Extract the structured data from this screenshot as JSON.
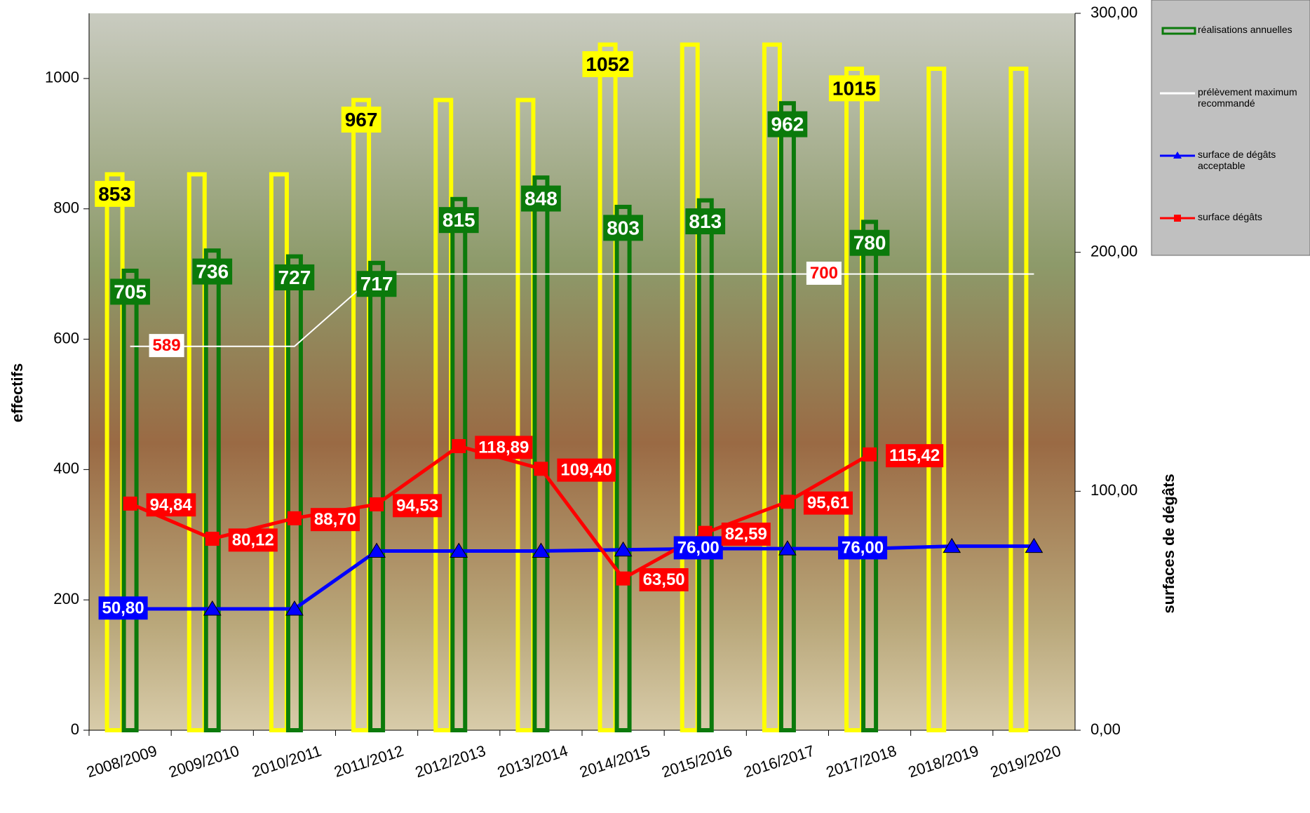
{
  "chart_data": {
    "type": "bar-line",
    "categories": [
      "2008/2009",
      "2009/2010",
      "2010/2011",
      "2011/2012",
      "2012/2013",
      "2013/2014",
      "2014/2015",
      "2015/2016",
      "2016/2017",
      "2017/2018",
      "2018/2019",
      "2019/2020"
    ],
    "ylabel": "effectifs",
    "y2label": "surfaces de dégâts",
    "ylim": [
      0,
      1100
    ],
    "yticks": [
      0,
      200,
      400,
      600,
      800,
      1000
    ],
    "y2lim": [
      0,
      300
    ],
    "y2ticks": [
      {
        "value": 0,
        "label": "0,00"
      },
      {
        "value": 100,
        "label": "100,00"
      },
      {
        "value": 200,
        "label": "200,00"
      },
      {
        "value": 300,
        "label": "300,00"
      }
    ],
    "series": [
      {
        "kind": "bar",
        "color": "#ffff00",
        "values": [
          853,
          853,
          853,
          967,
          967,
          967,
          1052,
          1052,
          1052,
          1015,
          1015,
          1015
        ],
        "value_labels": [
          "853",
          null,
          null,
          "967",
          null,
          null,
          "1052",
          null,
          null,
          "1015",
          null,
          null
        ]
      },
      {
        "name": "réalisations annuelles",
        "kind": "bar",
        "color": "#0b7a0b",
        "show_values": true,
        "values": [
          705,
          736,
          727,
          717,
          815,
          848,
          803,
          813,
          962,
          780,
          null,
          null
        ]
      },
      {
        "name": "prélèvement maximum recommandé",
        "kind": "line",
        "color": "#ffffff",
        "values": [
          589,
          589,
          589,
          700,
          700,
          700,
          700,
          700,
          700,
          700,
          700,
          700
        ],
        "value_labels": [
          "589",
          null,
          null,
          null,
          null,
          null,
          null,
          null,
          "700",
          null,
          null,
          null
        ]
      },
      {
        "name": "surface de dégâts acceptable",
        "kind": "line",
        "axis": "y2",
        "marker": "triangle",
        "color": "#0000ff",
        "values": [
          50.8,
          50.8,
          50.8,
          75,
          75,
          75,
          75.5,
          76,
          76,
          76,
          77,
          77
        ],
        "value_labels": [
          "50,80",
          null,
          null,
          null,
          null,
          null,
          null,
          "76,00",
          null,
          "76,00",
          null,
          null
        ]
      },
      {
        "name": "surface dégâts",
        "kind": "line",
        "axis": "y2",
        "marker": "square",
        "color": "#ff0000",
        "values": [
          94.84,
          80.12,
          88.7,
          94.53,
          118.89,
          109.4,
          63.5,
          82.59,
          95.61,
          115.42,
          null,
          null
        ],
        "value_labels": [
          "94,84",
          "80,12",
          "88,70",
          "94,53",
          "118,89",
          "109,40",
          "63,50",
          "82,59",
          "95,61",
          "115,42",
          null,
          null
        ]
      }
    ]
  }
}
